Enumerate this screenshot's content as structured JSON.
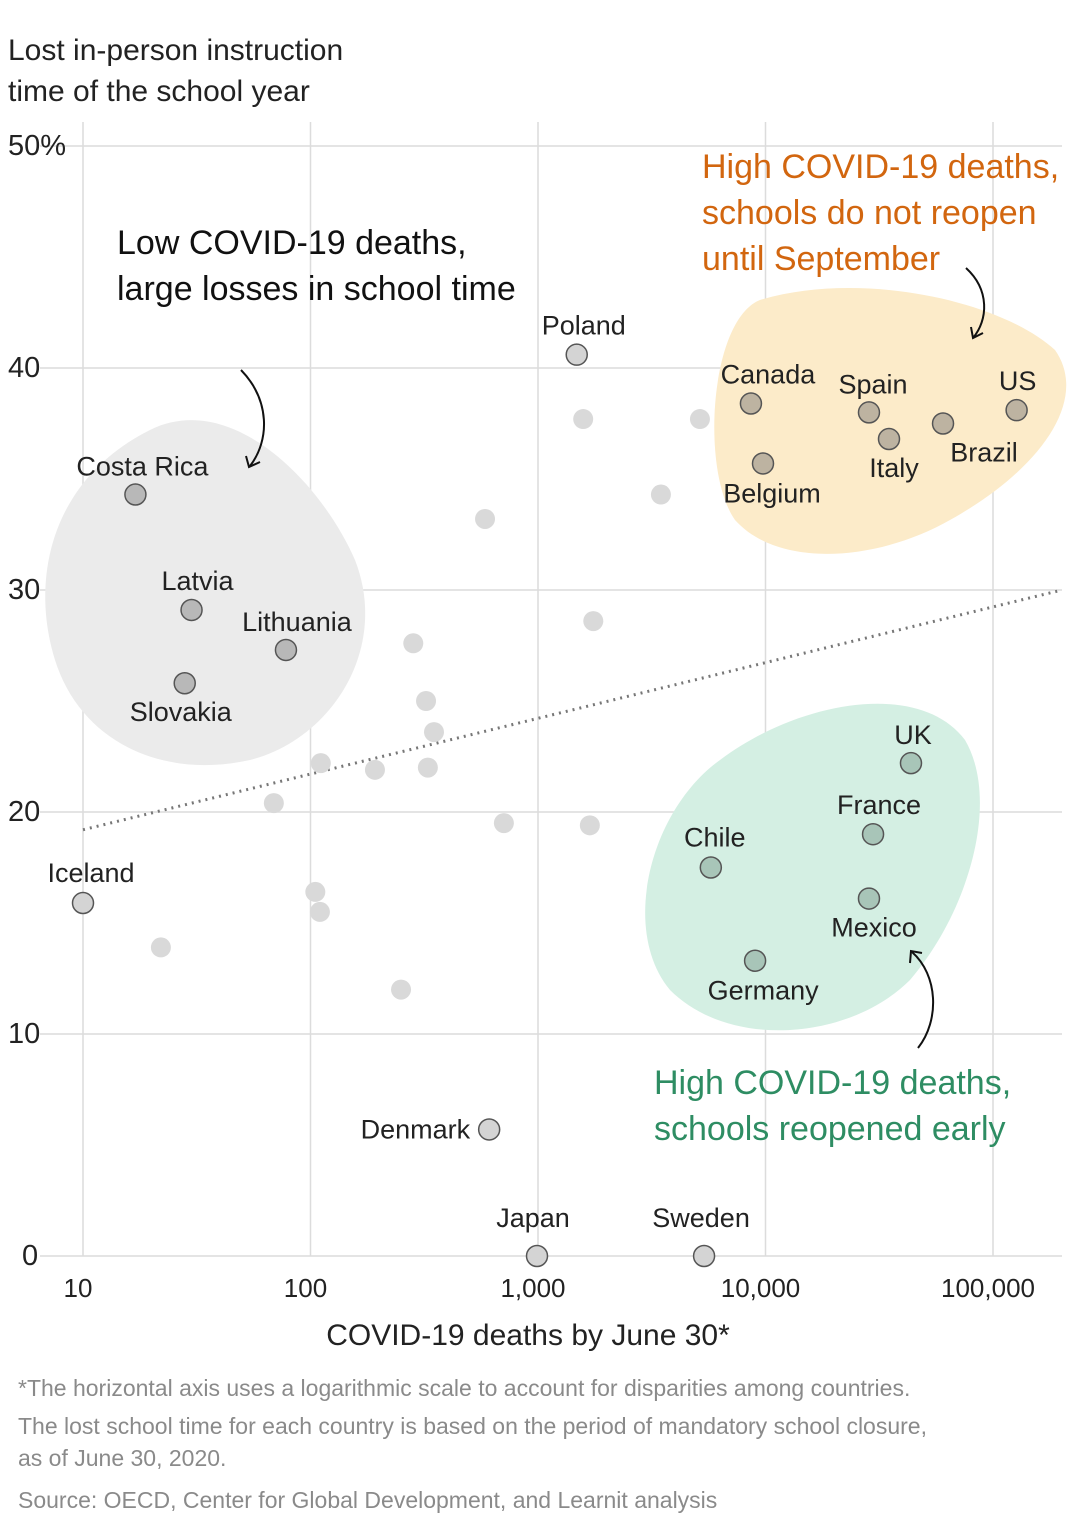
{
  "chart_data": {
    "type": "scatter",
    "title": "",
    "ylabel_lines": [
      "Lost in-person instruction",
      "time of the school year"
    ],
    "xlabel": "COVID-19 deaths by June 30*",
    "xscale": "log",
    "xlim": [
      10,
      200000
    ],
    "ylim": [
      0,
      50
    ],
    "xticks": [
      10,
      100,
      1000,
      10000,
      100000
    ],
    "xtick_labels": [
      "10",
      "100",
      "1,000",
      "10,000",
      "100,000"
    ],
    "yticks": [
      0,
      10,
      20,
      30,
      40,
      50
    ],
    "ytick_labels": [
      "0",
      "10",
      "20",
      "30",
      "40",
      "50%"
    ],
    "grid": true,
    "trend_line": {
      "style": "dotted",
      "from": [
        10,
        19.2
      ],
      "to": [
        200000,
        30.0
      ]
    },
    "groups": {
      "low": {
        "color": "#ebebeb",
        "point_fill": "#b8b8b8"
      },
      "reopen_late": {
        "color": "#fcebc9",
        "point_fill": "#bdb3a1"
      },
      "reopen_early": {
        "color": "#d4efe3",
        "point_fill": "#a8c5b8"
      }
    },
    "points": [
      {
        "label": "Poland",
        "x": 1480,
        "y": 40.6,
        "group": "none"
      },
      {
        "label": "Canada",
        "x": 8630,
        "y": 38.4,
        "group": "reopen_late"
      },
      {
        "label": "Spain",
        "x": 28500,
        "y": 38.0,
        "group": "reopen_late"
      },
      {
        "label": "Italy",
        "x": 34900,
        "y": 36.8,
        "group": "reopen_late"
      },
      {
        "label": "Brazil",
        "x": 60300,
        "y": 37.5,
        "group": "reopen_late"
      },
      {
        "label": "US",
        "x": 127000,
        "y": 38.1,
        "group": "reopen_late"
      },
      {
        "label": "Belgium",
        "x": 9750,
        "y": 35.7,
        "group": "reopen_late"
      },
      {
        "label": "Costa Rica",
        "x": 17,
        "y": 34.3,
        "group": "low"
      },
      {
        "label": "Latvia",
        "x": 30,
        "y": 29.1,
        "group": "low"
      },
      {
        "label": "Lithuania",
        "x": 78,
        "y": 27.3,
        "group": "low"
      },
      {
        "label": "Slovakia",
        "x": 28,
        "y": 25.8,
        "group": "low"
      },
      {
        "label": "UK",
        "x": 43600,
        "y": 22.2,
        "group": "reopen_early"
      },
      {
        "label": "France",
        "x": 29700,
        "y": 19.0,
        "group": "reopen_early"
      },
      {
        "label": "Chile",
        "x": 5750,
        "y": 17.5,
        "group": "reopen_early"
      },
      {
        "label": "Mexico",
        "x": 28500,
        "y": 16.1,
        "group": "reopen_early"
      },
      {
        "label": "Germany",
        "x": 9000,
        "y": 13.3,
        "group": "reopen_early"
      },
      {
        "label": "Iceland",
        "x": 10,
        "y": 15.9,
        "group": "none"
      },
      {
        "label": "Denmark",
        "x": 610,
        "y": 5.7,
        "group": "none"
      },
      {
        "label": "Japan",
        "x": 990,
        "y": 0,
        "group": "none"
      },
      {
        "label": "Sweden",
        "x": 5370,
        "y": 0,
        "group": "none"
      },
      {
        "label": "",
        "x": 1580,
        "y": 37.7,
        "group": "unlabeled"
      },
      {
        "label": "",
        "x": 5150,
        "y": 37.7,
        "group": "unlabeled"
      },
      {
        "label": "",
        "x": 3470,
        "y": 34.3,
        "group": "unlabeled"
      },
      {
        "label": "",
        "x": 585,
        "y": 33.2,
        "group": "unlabeled"
      },
      {
        "label": "",
        "x": 1750,
        "y": 28.6,
        "group": "unlabeled"
      },
      {
        "label": "",
        "x": 283,
        "y": 27.6,
        "group": "unlabeled"
      },
      {
        "label": "",
        "x": 322,
        "y": 25.0,
        "group": "unlabeled"
      },
      {
        "label": "",
        "x": 349,
        "y": 23.6,
        "group": "unlabeled"
      },
      {
        "label": "",
        "x": 111,
        "y": 22.2,
        "group": "unlabeled"
      },
      {
        "label": "",
        "x": 192,
        "y": 21.9,
        "group": "unlabeled"
      },
      {
        "label": "",
        "x": 328,
        "y": 22.0,
        "group": "unlabeled"
      },
      {
        "label": "",
        "x": 69,
        "y": 20.4,
        "group": "unlabeled"
      },
      {
        "label": "",
        "x": 708,
        "y": 19.5,
        "group": "unlabeled"
      },
      {
        "label": "",
        "x": 1690,
        "y": 19.4,
        "group": "unlabeled"
      },
      {
        "label": "",
        "x": 105,
        "y": 16.4,
        "group": "unlabeled"
      },
      {
        "label": "",
        "x": 110,
        "y": 15.5,
        "group": "unlabeled"
      },
      {
        "label": "",
        "x": 22,
        "y": 13.9,
        "group": "unlabeled"
      },
      {
        "label": "",
        "x": 250,
        "y": 12.0,
        "group": "unlabeled"
      }
    ],
    "annotations": {
      "low": {
        "lines": [
          "Low COVID-19 deaths,",
          "large losses in school time"
        ],
        "color": "#111111"
      },
      "reopen_late": {
        "lines": [
          "High COVID-19 deaths,",
          "schools do not reopen",
          "until September"
        ],
        "color": "#d2660f"
      },
      "reopen_early": {
        "lines": [
          "High COVID-19 deaths,",
          "schools reopened early"
        ],
        "color": "#2e8d63"
      }
    }
  },
  "footnote": {
    "line1": "*The horizontal axis uses a logarithmic scale to account for disparities among countries.",
    "line2": "The lost school time for each country is based on the period of mandatory school closure,",
    "line3": "as of June 30, 2020.",
    "source": "Source: OECD, Center for Global Development, and Learnit analysis"
  }
}
